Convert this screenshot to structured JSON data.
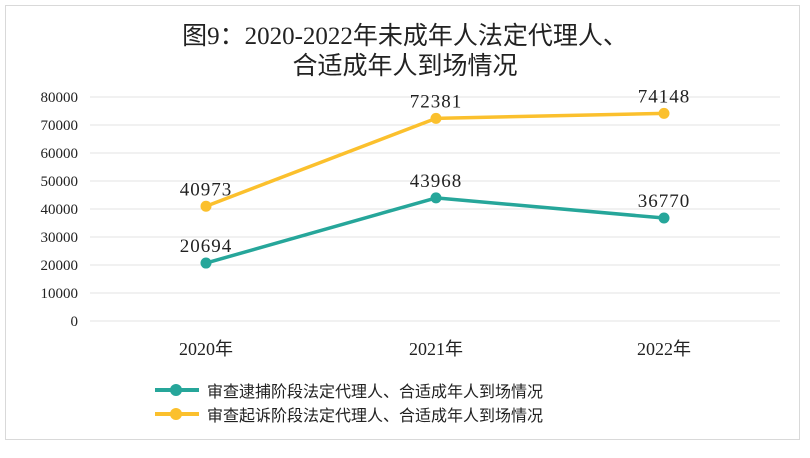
{
  "chart_data": {
    "type": "line",
    "title": [
      "图9：2020-2022年未成年人法定代理人、",
      "合适成年人到场情况"
    ],
    "categories": [
      "2020年",
      "2021年",
      "2022年"
    ],
    "yticks": [
      "0",
      "10000",
      "20000",
      "30000",
      "40000",
      "50000",
      "60000",
      "70000",
      "80000"
    ],
    "ylim": [
      0,
      80000
    ],
    "grid": true,
    "legend_position": "bottom",
    "series": [
      {
        "name": "审查逮捕阶段法定代理人、合适成年人到场情况",
        "values": [
          20694,
          43968,
          36770
        ],
        "labels": [
          "20694",
          "43968",
          "36770"
        ],
        "color": "#26a69a"
      },
      {
        "name": "审查起诉阶段法定代理人、合适成年人到场情况",
        "values": [
          40973,
          72381,
          74148
        ],
        "labels": [
          "40973",
          "72381",
          "74148"
        ],
        "color": "#fbc02d"
      }
    ]
  }
}
